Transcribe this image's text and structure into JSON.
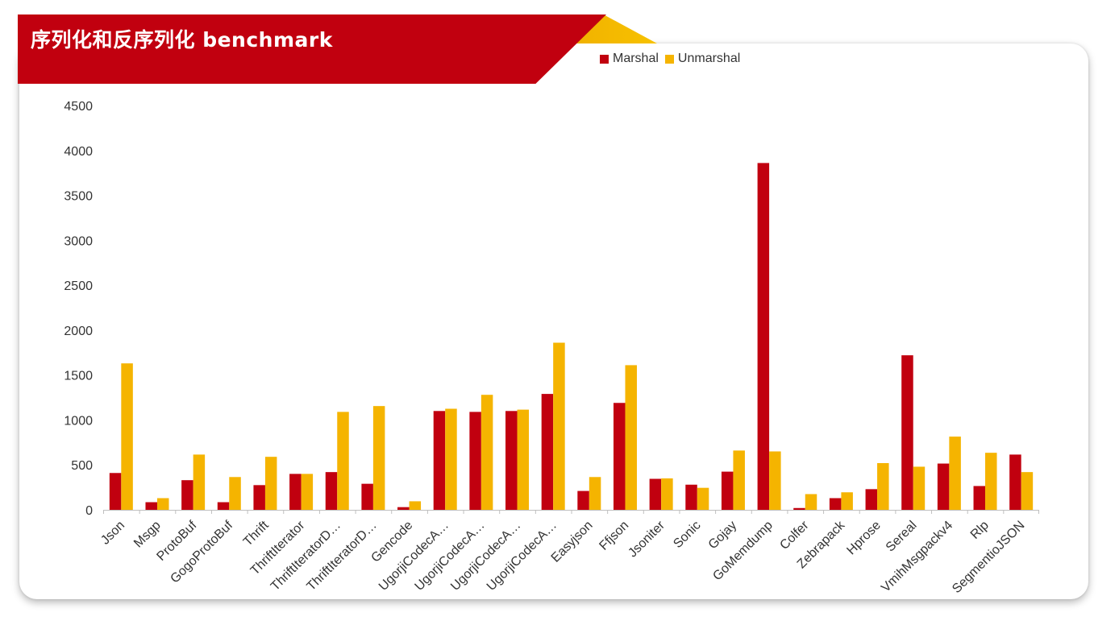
{
  "header": {
    "title": "序列化和反序列化 benchmark"
  },
  "colors": {
    "banner": "#c1000f",
    "accent": "#f2b400",
    "marshal": "#c1000f",
    "unmarshal": "#f5b400"
  },
  "chart_data": {
    "type": "bar",
    "title": "序列化和反序列化 benchmark",
    "xlabel": "",
    "ylabel": "",
    "ylim": [
      0,
      4500
    ],
    "yticks": [
      0,
      500,
      1000,
      1500,
      2000,
      2500,
      3000,
      3500,
      4000,
      4500
    ],
    "grid": false,
    "legend_position": "top-center",
    "categories": [
      "Json",
      "Msgp",
      "ProtoBuf",
      "GogoProtoBuf",
      "Thrift",
      "ThriftIterator",
      "ThriftIteratorD…",
      "ThriftIteratorD…",
      "Gencode",
      "UgorjiCodecA…",
      "UgorjiCodecA…",
      "UgorjiCodecA…",
      "UgorjiCodecA…",
      "Easyjson",
      "Ffjson",
      "Jsoniter",
      "Sonic",
      "Gojay",
      "GoMemdump",
      "Colfer",
      "Zebrapack",
      "Hprose",
      "Sereal",
      "VmihMsgpackv4",
      "Rlp",
      "SegmentioJSON"
    ],
    "series": [
      {
        "name": "Marshal",
        "values": [
          410,
          85,
          330,
          85,
          275,
          400,
          420,
          290,
          30,
          1100,
          1090,
          1100,
          1290,
          210,
          1190,
          345,
          280,
          425,
          3860,
          20,
          130,
          230,
          1720,
          515,
          265,
          615
        ]
      },
      {
        "name": "Unmarshal",
        "values": [
          1630,
          130,
          615,
          365,
          590,
          400,
          1090,
          1155,
          95,
          1125,
          1280,
          1115,
          1860,
          365,
          1610,
          350,
          245,
          660,
          650,
          175,
          195,
          520,
          480,
          815,
          635,
          420
        ]
      }
    ]
  }
}
